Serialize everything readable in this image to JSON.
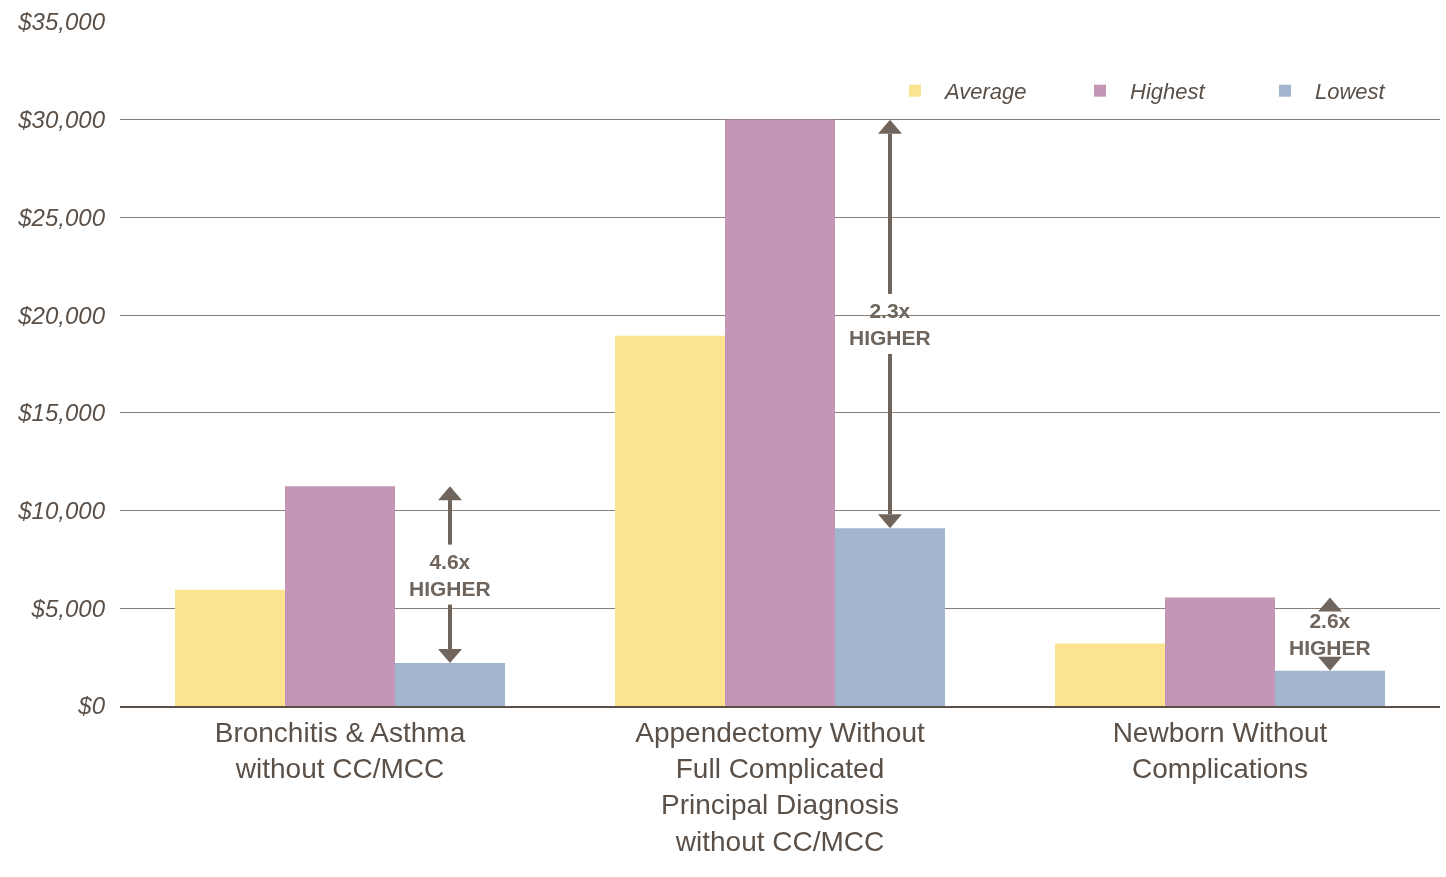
{
  "chart_data": {
    "type": "bar",
    "categories": [
      "Bronchitis & Asthma without CC/MCC",
      "Appendectomy Without Full Complicated Principal Diagnosis without CC/MCC",
      "Newborn Without Complications"
    ],
    "series": [
      {
        "name": "Average",
        "color": "#fce38f",
        "values": [
          5950,
          18950,
          3200
        ]
      },
      {
        "name": "Highest",
        "color": "#c496b6",
        "values": [
          11250,
          30000,
          5550
        ]
      },
      {
        "name": "Lowest",
        "color": "#a2b5cf",
        "values": [
          2200,
          9100,
          1800
        ]
      }
    ],
    "ylim": [
      0,
      35000
    ],
    "yticks": [
      {
        "value": 0,
        "label": "$0"
      },
      {
        "value": 5000,
        "label": "$5,000"
      },
      {
        "value": 10000,
        "label": "$10,000"
      },
      {
        "value": 15000,
        "label": "$15,000"
      },
      {
        "value": 20000,
        "label": "$20,000"
      },
      {
        "value": 25000,
        "label": "$25,000"
      },
      {
        "value": 30000,
        "label": "$30,000"
      },
      {
        "value": 35000,
        "label": "$35,000"
      }
    ],
    "grid": "y",
    "legend": "top right",
    "annotations": [
      "4.6x HIGHER",
      "2.3x HIGHER",
      "2.6x HIGHER"
    ]
  }
}
